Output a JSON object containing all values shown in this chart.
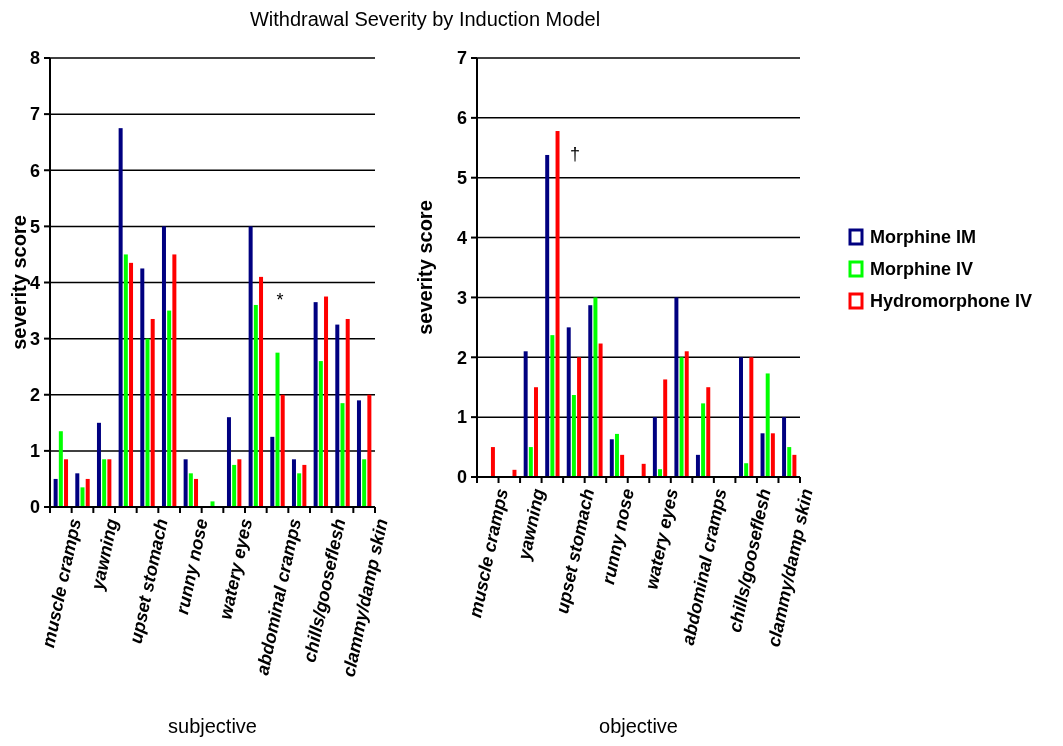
{
  "chart_data": [
    {
      "type": "bar",
      "title": "Withdrawal Severity by Induction Model",
      "xlabel": "subjective",
      "ylabel": "severity score",
      "categories": [
        "muscle cramps",
        null,
        "yawning",
        null,
        "upset stomach",
        null,
        "runny nose",
        null,
        "watery eyes",
        null,
        "abdominal cramps",
        null,
        "chills/gooseflesh",
        null,
        "clammy/damp skin"
      ],
      "series": [
        {
          "color": "#000080",
          "values": [
            0.5,
            0.6,
            1.5,
            6.75,
            4.25,
            5.0,
            0.85,
            0,
            1.6,
            5.0,
            1.25,
            0.85,
            3.65,
            3.25,
            1.9
          ]
        },
        {
          "color": "#00ff00",
          "values": [
            1.35,
            0.35,
            0.85,
            4.5,
            3.0,
            3.5,
            0.6,
            0.1,
            0.75,
            3.6,
            2.75,
            0.6,
            2.6,
            1.85,
            0.85
          ]
        },
        {
          "color": "#ff0000",
          "values": [
            0.85,
            0.5,
            0.85,
            4.35,
            3.35,
            4.5,
            0.5,
            0,
            0.85,
            4.1,
            2.0,
            0.75,
            3.75,
            3.35,
            2.0
          ]
        }
      ],
      "ylim": [
        0,
        8
      ],
      "yticks": [
        0,
        1,
        2,
        3,
        4,
        5,
        6,
        7,
        8
      ],
      "grid": "y",
      "legend": false,
      "annotations": [
        "*"
      ]
    },
    {
      "type": "bar",
      "xlabel": "objective",
      "ylabel": "severity score",
      "categories": [
        "muscle cramps",
        null,
        "yawning",
        null,
        "upset stomach",
        null,
        "runny nose",
        null,
        "watery eyes",
        null,
        "abdominal cramps",
        null,
        "chills/gooseflesh",
        null,
        "clammy/damp skin"
      ],
      "series": [
        {
          "name": "Morphine IM",
          "color": "#000080",
          "values": [
            0,
            0,
            2.1,
            5.38,
            2.5,
            2.87,
            0.63,
            0,
            1.0,
            3.0,
            0.37,
            0,
            2.0,
            0.73,
            1.0
          ]
        },
        {
          "name": "Morphine IV",
          "color": "#00ff00",
          "values": [
            0,
            0,
            0.5,
            2.37,
            1.37,
            3.0,
            0.72,
            0,
            0.13,
            2.0,
            1.23,
            0,
            0.23,
            1.73,
            0.5
          ]
        },
        {
          "name": "Hydromorphone IV",
          "color": "#ff0000",
          "values": [
            0.5,
            0.12,
            1.5,
            5.78,
            2.0,
            2.23,
            0.37,
            0.22,
            1.63,
            2.1,
            1.5,
            0,
            2.0,
            0.73,
            0.37
          ]
        }
      ],
      "ylim": [
        0,
        7
      ],
      "yticks": [
        0,
        1,
        2,
        3,
        4,
        5,
        6,
        7
      ],
      "grid": "y",
      "legend": "right",
      "annotations": [
        "†"
      ]
    }
  ]
}
